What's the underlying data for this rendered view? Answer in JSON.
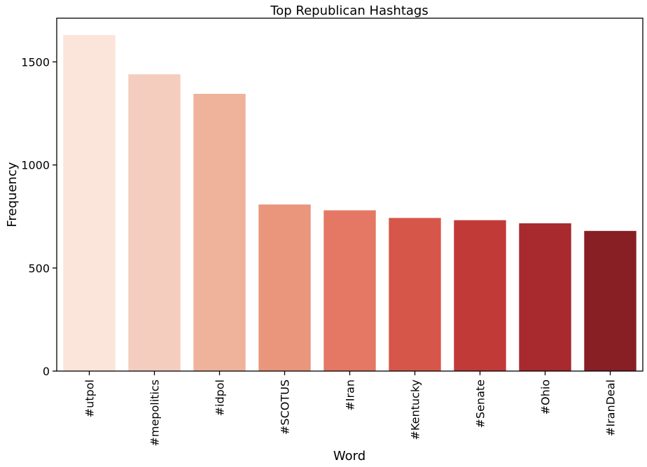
{
  "chart_data": {
    "type": "bar",
    "title": "Top Republican Hashtags",
    "xlabel": "Word",
    "ylabel": "Frequency",
    "categories": [
      "#utpol",
      "#mepolitics",
      "#idpol",
      "#SCOTUS",
      "#Iran",
      "#Kentucky",
      "#Senate",
      "#Ohio",
      "#IranDeal"
    ],
    "values": [
      1630,
      1440,
      1345,
      808,
      780,
      743,
      732,
      717,
      680
    ],
    "colors": [
      "#fbe4d9",
      "#f4cdbe",
      "#efb29b",
      "#e9967c",
      "#e47864",
      "#d6574a",
      "#c13a38",
      "#a8292e",
      "#871f25"
    ],
    "yticks": [
      0,
      500,
      1000,
      1500
    ],
    "ylim": [
      0,
      1712
    ],
    "grid": false,
    "legend": false
  }
}
